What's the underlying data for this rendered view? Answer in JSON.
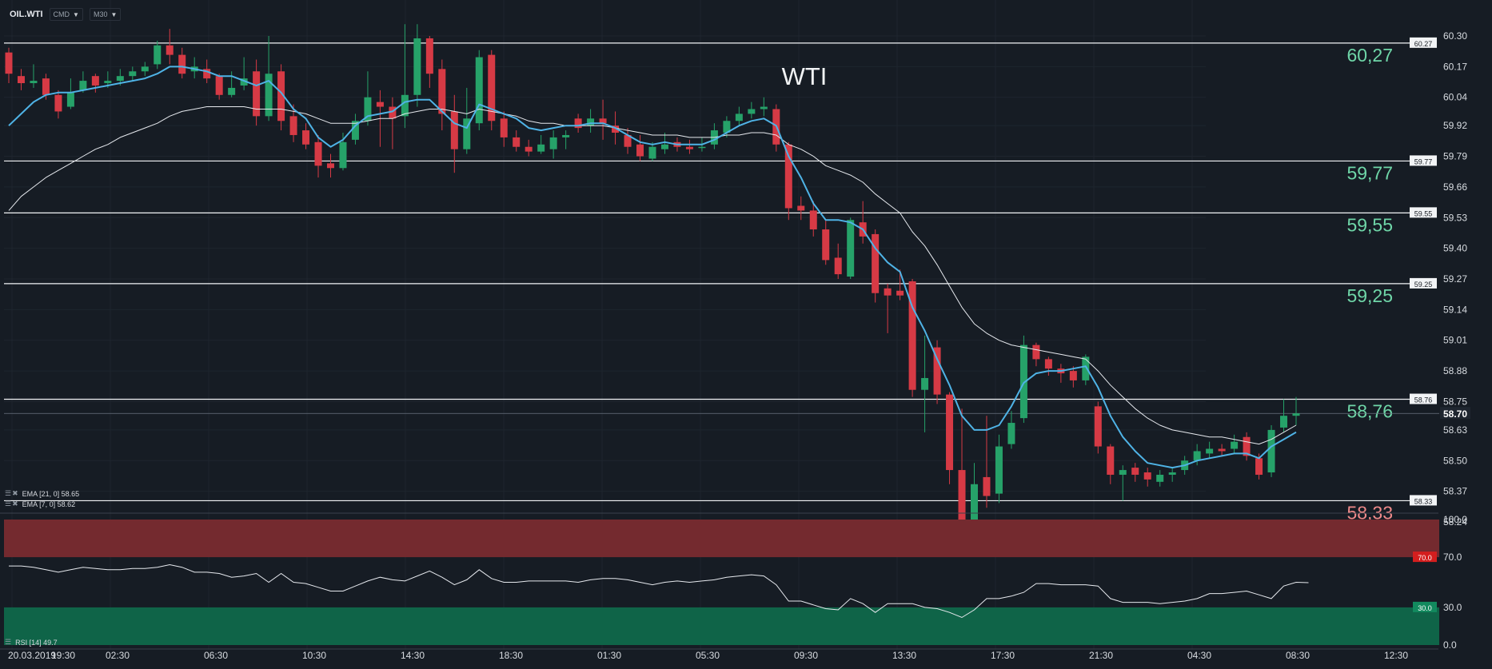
{
  "header": {
    "symbol": "OIL.WTI",
    "cmd_label": "CMD",
    "timeframe_label": "M30"
  },
  "indicators": {
    "ema21_label": "EMA [21, 0] 58.65",
    "ema7_label": "EMA [7, 0] 58.62",
    "rsi_label": "RSI [14] 49.7"
  },
  "colors": {
    "background": "#161c24",
    "bull": "#26a269",
    "bear": "#d63a45",
    "ema_fast": "#4fb3e6",
    "ema_slow": "#e6e9ee",
    "level_text_green": "#6fd6a8",
    "level_text_red": "#f08a8a",
    "rsi_overbought_band": "#742a2f",
    "rsi_oversold_band": "#0f6448"
  },
  "chart_data": {
    "type": "candlestick",
    "title": "WTI",
    "price_axis": {
      "ticks": [
        60.3,
        60.17,
        60.04,
        59.92,
        59.79,
        59.66,
        59.53,
        59.4,
        59.27,
        59.14,
        59.01,
        58.88,
        58.75,
        58.63,
        58.5,
        58.37,
        58.24
      ],
      "tick_labels": [
        "60.30",
        "60.17",
        "60.04",
        "59.92",
        "59.79",
        "59.66",
        "59.53",
        "59.40",
        "59.27",
        "59.14",
        "59.01",
        "58.88",
        "58.75",
        "58.63",
        "58.50",
        "58.37",
        "58.24"
      ],
      "range": [
        58.24,
        60.3
      ],
      "current_price": 58.7,
      "current_price_label": "58.70"
    },
    "time_axis": {
      "labels": [
        "20.03.2019",
        "19:30",
        "02:30",
        "06:30",
        "10:30",
        "14:30",
        "18:30",
        "01:30",
        "05:30",
        "09:30",
        "13:30",
        "17:30",
        "21:30",
        "04:30",
        "08:30",
        "12:30"
      ]
    },
    "levels": [
      {
        "value": 60.27,
        "tag": "60.27",
        "label": "60,27",
        "tone": "green"
      },
      {
        "value": 59.77,
        "tag": "59.77",
        "label": "59,77",
        "tone": "green"
      },
      {
        "value": 59.55,
        "tag": "59.55",
        "label": "59,55",
        "tone": "green"
      },
      {
        "value": 59.25,
        "tag": "59.25",
        "label": "59,25",
        "tone": "green"
      },
      {
        "value": 58.76,
        "tag": "58.76",
        "label": "58,76",
        "tone": "green"
      },
      {
        "value": 58.33,
        "tag": "58.33",
        "label": "58,33",
        "tone": "red"
      }
    ],
    "candles": [
      [
        60.23,
        60.14,
        60.25,
        60.1
      ],
      [
        60.13,
        60.1,
        60.16,
        60.07
      ],
      [
        60.1,
        60.11,
        60.18,
        60.08
      ],
      [
        60.12,
        60.05,
        60.14,
        60.03
      ],
      [
        60.05,
        59.98,
        60.07,
        59.95
      ],
      [
        60.0,
        60.06,
        60.12,
        59.99
      ],
      [
        60.07,
        60.11,
        60.15,
        60.06
      ],
      [
        60.13,
        60.09,
        60.14,
        60.06
      ],
      [
        60.1,
        60.11,
        60.15,
        60.08
      ],
      [
        60.11,
        60.13,
        60.16,
        60.09
      ],
      [
        60.13,
        60.15,
        60.17,
        60.11
      ],
      [
        60.15,
        60.17,
        60.19,
        60.13
      ],
      [
        60.18,
        60.26,
        60.28,
        60.16
      ],
      [
        60.26,
        60.22,
        60.33,
        60.18
      ],
      [
        60.22,
        60.14,
        60.25,
        60.12
      ],
      [
        60.15,
        60.17,
        60.21,
        60.12
      ],
      [
        60.16,
        60.12,
        60.2,
        60.1
      ],
      [
        60.13,
        60.05,
        60.14,
        60.03
      ],
      [
        60.05,
        60.08,
        60.15,
        60.04
      ],
      [
        60.09,
        60.12,
        60.21,
        60.07
      ],
      [
        60.15,
        59.96,
        60.2,
        59.92
      ],
      [
        59.96,
        60.14,
        60.3,
        59.94
      ],
      [
        60.15,
        59.94,
        60.18,
        59.9
      ],
      [
        59.96,
        59.88,
        60.01,
        59.85
      ],
      [
        59.9,
        59.84,
        59.93,
        59.82
      ],
      [
        59.85,
        59.75,
        59.88,
        59.7
      ],
      [
        59.76,
        59.74,
        59.8,
        59.7
      ],
      [
        59.74,
        59.85,
        59.89,
        59.73
      ],
      [
        59.86,
        59.94,
        59.97,
        59.84
      ],
      [
        59.94,
        60.04,
        60.15,
        59.92
      ],
      [
        60.02,
        60.0,
        60.07,
        59.83
      ],
      [
        60.0,
        59.95,
        60.04,
        59.82
      ],
      [
        59.96,
        60.05,
        60.35,
        59.91
      ],
      [
        60.05,
        60.29,
        60.35,
        60.0
      ],
      [
        60.29,
        60.14,
        60.3,
        60.08
      ],
      [
        60.16,
        59.97,
        60.2,
        59.9
      ],
      [
        59.98,
        59.82,
        60.05,
        59.72
      ],
      [
        59.82,
        59.95,
        60.08,
        59.8
      ],
      [
        59.93,
        60.21,
        60.24,
        59.9
      ],
      [
        60.22,
        59.94,
        60.24,
        59.9
      ],
      [
        59.95,
        59.87,
        59.98,
        59.83
      ],
      [
        59.87,
        59.83,
        59.9,
        59.81
      ],
      [
        59.83,
        59.81,
        59.86,
        59.79
      ],
      [
        59.81,
        59.84,
        59.88,
        59.8
      ],
      [
        59.82,
        59.87,
        59.9,
        59.78
      ],
      [
        59.87,
        59.88,
        59.9,
        59.82
      ],
      [
        59.95,
        59.91,
        59.97,
        59.89
      ],
      [
        59.92,
        59.95,
        59.99,
        59.89
      ],
      [
        59.95,
        59.93,
        60.03,
        59.86
      ],
      [
        59.92,
        59.89,
        59.98,
        59.84
      ],
      [
        59.88,
        59.83,
        59.91,
        59.8
      ],
      [
        59.84,
        59.79,
        59.88,
        59.77
      ],
      [
        59.78,
        59.83,
        59.85,
        59.77
      ],
      [
        59.82,
        59.84,
        59.89,
        59.8
      ],
      [
        59.85,
        59.83,
        59.87,
        59.81
      ],
      [
        59.83,
        59.82,
        59.86,
        59.8
      ],
      [
        59.83,
        59.83,
        59.87,
        59.81
      ],
      [
        59.84,
        59.9,
        59.93,
        59.82
      ],
      [
        59.89,
        59.94,
        59.96,
        59.87
      ],
      [
        59.94,
        59.97,
        60.0,
        59.92
      ],
      [
        59.97,
        59.99,
        60.02,
        59.95
      ],
      [
        59.99,
        60.0,
        60.04,
        59.96
      ],
      [
        59.99,
        59.84,
        60.01,
        59.81
      ],
      [
        59.84,
        59.57,
        59.85,
        59.52
      ],
      [
        59.58,
        59.56,
        59.62,
        59.52
      ],
      [
        59.56,
        59.48,
        59.6,
        59.45
      ],
      [
        59.48,
        59.35,
        59.52,
        59.33
      ],
      [
        59.36,
        59.29,
        59.42,
        59.27
      ],
      [
        59.28,
        59.52,
        59.53,
        59.27
      ],
      [
        59.51,
        59.45,
        59.6,
        59.42
      ],
      [
        59.46,
        59.21,
        59.48,
        59.17
      ],
      [
        59.23,
        59.2,
        59.25,
        59.04
      ],
      [
        59.22,
        59.2,
        59.31,
        59.18
      ],
      [
        59.26,
        58.8,
        59.27,
        58.77
      ],
      [
        58.8,
        58.85,
        59.03,
        58.62
      ],
      [
        58.98,
        58.78,
        59.01,
        58.74
      ],
      [
        58.78,
        58.46,
        58.79,
        58.4
      ],
      [
        58.46,
        58.25,
        58.72,
        58.24
      ],
      [
        58.24,
        58.4,
        58.49,
        58.23
      ],
      [
        58.43,
        58.35,
        58.69,
        58.3
      ],
      [
        58.36,
        58.56,
        58.61,
        58.32
      ],
      [
        58.57,
        58.66,
        58.71,
        58.55
      ],
      [
        58.68,
        58.99,
        59.03,
        58.66
      ],
      [
        58.99,
        58.93,
        59.0,
        58.9
      ],
      [
        58.93,
        58.89,
        58.94,
        58.86
      ],
      [
        58.89,
        58.87,
        58.91,
        58.83
      ],
      [
        58.88,
        58.84,
        58.9,
        58.81
      ],
      [
        58.84,
        58.94,
        58.95,
        58.82
      ],
      [
        58.73,
        58.56,
        58.75,
        58.53
      ],
      [
        58.56,
        58.44,
        58.57,
        58.4
      ],
      [
        58.44,
        58.46,
        58.48,
        58.33
      ],
      [
        58.47,
        58.44,
        58.49,
        58.41
      ],
      [
        58.45,
        58.42,
        58.47,
        58.39
      ],
      [
        58.41,
        58.44,
        58.46,
        58.39
      ],
      [
        58.44,
        58.45,
        58.47,
        58.41
      ],
      [
        58.46,
        58.5,
        58.52,
        58.44
      ],
      [
        58.5,
        58.54,
        58.57,
        58.48
      ],
      [
        58.53,
        58.55,
        58.58,
        58.51
      ],
      [
        58.55,
        58.54,
        58.57,
        58.52
      ],
      [
        58.55,
        58.58,
        58.61,
        58.53
      ],
      [
        58.6,
        58.52,
        58.62,
        58.5
      ],
      [
        58.51,
        58.44,
        58.53,
        58.42
      ],
      [
        58.45,
        58.63,
        58.65,
        58.43
      ],
      [
        58.64,
        58.69,
        58.76,
        58.62
      ],
      [
        58.69,
        58.7,
        58.77,
        58.65
      ]
    ],
    "ema_fast": [
      59.92,
      59.97,
      60.02,
      60.05,
      60.06,
      60.06,
      60.07,
      60.08,
      60.09,
      60.1,
      60.11,
      60.12,
      60.14,
      60.17,
      60.17,
      60.16,
      60.15,
      60.13,
      60.13,
      60.11,
      60.09,
      60.11,
      60.06,
      59.99,
      59.95,
      59.87,
      59.83,
      59.86,
      59.92,
      59.96,
      59.97,
      59.98,
      60.02,
      60.03,
      60.03,
      59.98,
      59.93,
      59.91,
      60.01,
      59.99,
      59.97,
      59.95,
      59.91,
      59.9,
      59.91,
      59.92,
      59.92,
      59.93,
      59.93,
      59.91,
      59.88,
      59.85,
      59.84,
      59.85,
      59.84,
      59.84,
      59.84,
      59.86,
      59.89,
      59.92,
      59.94,
      59.95,
      59.92,
      59.79,
      59.7,
      59.59,
      59.52,
      59.52,
      59.51,
      59.48,
      59.4,
      59.34,
      59.3,
      59.15,
      59.05,
      58.93,
      58.82,
      58.69,
      58.63,
      58.63,
      58.65,
      58.73,
      58.83,
      58.87,
      58.88,
      58.88,
      58.89,
      58.9,
      58.81,
      58.69,
      58.6,
      58.54,
      58.49,
      58.48,
      58.47,
      58.48,
      58.5,
      58.51,
      58.52,
      58.53,
      58.53,
      58.51,
      58.56,
      58.59,
      58.62
    ],
    "ema_slow": [
      59.56,
      59.62,
      59.66,
      59.7,
      59.73,
      59.76,
      59.79,
      59.82,
      59.84,
      59.87,
      59.89,
      59.91,
      59.93,
      59.96,
      59.98,
      59.99,
      60.0,
      60.0,
      60.0,
      60.0,
      59.99,
      59.99,
      59.99,
      59.98,
      59.97,
      59.95,
      59.93,
      59.93,
      59.93,
      59.94,
      59.95,
      59.95,
      59.97,
      59.98,
      59.99,
      59.99,
      59.98,
      59.97,
      59.99,
      59.98,
      59.97,
      59.96,
      59.94,
      59.93,
      59.93,
      59.92,
      59.92,
      59.92,
      59.92,
      59.91,
      59.9,
      59.89,
      59.88,
      59.88,
      59.88,
      59.87,
      59.87,
      59.87,
      59.88,
      59.88,
      59.89,
      59.89,
      59.88,
      59.84,
      59.82,
      59.79,
      59.75,
      59.73,
      59.71,
      59.68,
      59.63,
      59.59,
      59.55,
      59.47,
      59.41,
      59.33,
      59.24,
      59.15,
      59.08,
      59.04,
      59.01,
      58.99,
      58.98,
      58.97,
      58.96,
      58.95,
      58.94,
      58.93,
      58.88,
      58.82,
      58.77,
      58.72,
      58.68,
      58.65,
      58.63,
      58.62,
      58.61,
      58.6,
      58.6,
      58.59,
      58.58,
      58.57,
      58.59,
      58.62,
      58.65
    ],
    "rsi": {
      "ticks": [
        100.0,
        70.0,
        30.0,
        0.0
      ],
      "tick_labels": [
        "100.0",
        "70.0",
        "30.0",
        "0.0"
      ],
      "overbought": 70,
      "overbought_label": "70.0",
      "oversold": 30,
      "oversold_label": "30.0",
      "values": [
        63,
        63,
        62,
        60,
        58,
        60,
        62,
        61,
        60,
        60,
        61,
        61,
        62,
        64,
        62,
        58,
        58,
        57,
        54,
        55,
        57,
        50,
        57,
        50,
        49,
        46,
        43,
        43,
        47,
        51,
        54,
        52,
        51,
        55,
        59,
        54,
        48,
        52,
        60,
        53,
        50,
        50,
        51,
        51,
        51,
        51,
        50,
        52,
        53,
        53,
        52,
        50,
        48,
        50,
        51,
        50,
        51,
        52,
        54,
        55,
        56,
        55,
        48,
        35,
        35,
        32,
        29,
        28,
        37,
        33,
        26,
        33,
        33,
        33,
        30,
        29,
        26,
        22,
        28,
        37,
        37,
        39,
        42,
        49,
        49,
        48,
        48,
        48,
        47,
        37,
        34,
        34,
        34,
        33,
        34,
        35,
        37,
        41,
        41,
        42,
        43,
        40,
        37,
        47,
        50,
        49.7
      ]
    }
  }
}
